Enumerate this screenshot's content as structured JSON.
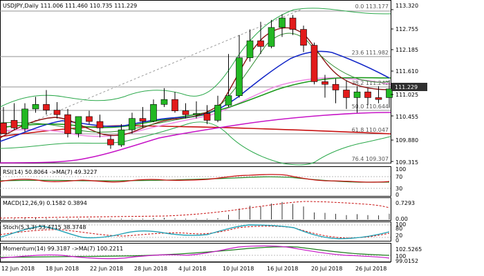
{
  "colors": {
    "background": "#ffffff",
    "bull_candle": "#23b823",
    "bear_candle": "#e21b1b",
    "ma_fast": "#8b1010",
    "ma_mid": "#1a9a1a",
    "ma_blue": "#1428c8",
    "ma_pink": "#f08ee6",
    "ma_magenta": "#c613c6",
    "ma_red": "#c81010",
    "bollinger": "#2aa84a",
    "fib_line": "#909090",
    "trend_dashed": "#9a9a9a",
    "price_badge": "#2f2f2f",
    "rsi_line": "#c81010",
    "rsi_ma": "#2a8a2a",
    "macd_hist": "#333333",
    "macd_signal": "#c81010",
    "stoch_main": "#1ea0b4",
    "stoch_signal": "#c81010",
    "momentum_line": "#c613c6",
    "momentum_ma": "#1a7a1a"
  },
  "main_panel": {
    "title": "USDJPY,Daily  111.006 111.460 110.735 111.229",
    "current_price": "111.229",
    "price_ticks": [
      "113.320",
      "112.755",
      "112.185",
      "111.610",
      "111.025",
      "110.455",
      "109.880",
      "109.315"
    ],
    "fib_levels": [
      {
        "label": "0.0 113.177",
        "price": 113.177
      },
      {
        "label": "23.6 111.982",
        "price": 111.982
      },
      {
        "label": "38.2 111.242",
        "price": 111.242
      },
      {
        "label": "50.0 110.644",
        "price": 110.644
      },
      {
        "label": "61.8 110.047",
        "price": 110.047
      },
      {
        "label": "76.4 109.307",
        "price": 109.307
      }
    ]
  },
  "rsi_panel": {
    "title": "RSI(14) 50.8064  ->MA(7) 49.3227",
    "ticks": [
      "100",
      "70",
      "30",
      "0"
    ]
  },
  "macd_panel": {
    "title": "MACD(12,26,9) 0.1582 0.3894",
    "ticks": [
      "0.7293",
      "0.00"
    ]
  },
  "stoch_panel": {
    "title": "Stoch(5,3,3) 53.4715 38.3748",
    "ticks": [
      "100",
      "80",
      "20",
      "0"
    ]
  },
  "momentum_panel": {
    "title": "Momentum(14) 99.3187  ->MA(7) 100.2211",
    "ticks": [
      "102.5265",
      "100",
      "99.0152"
    ]
  },
  "x_axis": {
    "labels": [
      "12 Jun 2018",
      "18 Jun 2018",
      "22 Jun 2018",
      "28 Jun 2018",
      "4 Jul 2018",
      "10 Jul 2018",
      "16 Jul 2018",
      "20 Jul 2018",
      "26 Jul 2018"
    ]
  },
  "chart_data": {
    "type": "candlestick",
    "title": "USDJPY,Daily  111.006 111.460 110.735 111.229",
    "xlabel": "",
    "ylabel": "",
    "ylim": [
      109.2,
      113.4
    ],
    "x": [
      "11 Jun",
      "12 Jun",
      "13 Jun",
      "14 Jun",
      "15 Jun",
      "18 Jun",
      "19 Jun",
      "20 Jun",
      "21 Jun",
      "22 Jun",
      "25 Jun",
      "26 Jun",
      "27 Jun",
      "28 Jun",
      "29 Jun",
      "2 Jul",
      "3 Jul",
      "4 Jul",
      "5 Jul",
      "6 Jul",
      "9 Jul",
      "10 Jul",
      "11 Jul",
      "12 Jul",
      "13 Jul",
      "16 Jul",
      "17 Jul",
      "18 Jul",
      "19 Jul",
      "20 Jul",
      "23 Jul",
      "24 Jul",
      "25 Jul",
      "26 Jul",
      "27 Jul",
      "30 Jul",
      "31 Jul"
    ],
    "series": [
      {
        "name": "open",
        "values": [
          110.33,
          110.4,
          110.18,
          110.7,
          110.82,
          110.67,
          110.55,
          110.05,
          110.5,
          110.37,
          109.9,
          109.75,
          110.15,
          110.45,
          110.38,
          110.82,
          110.95,
          110.65,
          110.55,
          110.58,
          110.4,
          110.8,
          111.05,
          112.05,
          112.5,
          112.35,
          112.85,
          113.1,
          112.8,
          112.38,
          111.42,
          111.35,
          111.2,
          111.0,
          111.15,
          111.0,
          111.0
        ]
      },
      {
        "name": "high",
        "values": [
          110.75,
          110.85,
          110.85,
          111.02,
          111.2,
          110.88,
          110.7,
          110.5,
          110.65,
          110.55,
          110.0,
          110.3,
          110.6,
          110.75,
          110.95,
          111.25,
          111.15,
          110.85,
          110.9,
          110.8,
          111.05,
          112.15,
          112.65,
          112.8,
          113.0,
          113.05,
          113.2,
          113.18,
          112.9,
          112.45,
          111.6,
          111.5,
          111.45,
          111.3,
          111.25,
          111.3,
          111.46
        ]
      },
      {
        "name": "low",
        "values": [
          110.1,
          110.15,
          110.1,
          110.6,
          110.55,
          110.45,
          109.95,
          109.95,
          110.3,
          109.95,
          109.65,
          109.7,
          110.05,
          110.2,
          110.35,
          110.75,
          110.6,
          110.45,
          110.45,
          110.3,
          110.35,
          110.75,
          111.0,
          111.95,
          112.15,
          112.3,
          112.6,
          112.65,
          112.2,
          111.35,
          111.0,
          110.85,
          110.7,
          110.6,
          110.8,
          110.85,
          110.73
        ]
      },
      {
        "name": "close",
        "values": [
          110.05,
          110.2,
          110.7,
          110.82,
          110.67,
          110.55,
          110.05,
          110.5,
          110.37,
          110.2,
          109.75,
          110.15,
          110.45,
          110.38,
          110.82,
          110.95,
          110.65,
          110.55,
          110.58,
          110.4,
          110.8,
          111.05,
          112.05,
          112.5,
          112.35,
          112.85,
          113.1,
          112.8,
          112.38,
          111.42,
          111.35,
          111.2,
          111.0,
          111.15,
          111.0,
          110.95,
          111.229
        ]
      }
    ]
  }
}
